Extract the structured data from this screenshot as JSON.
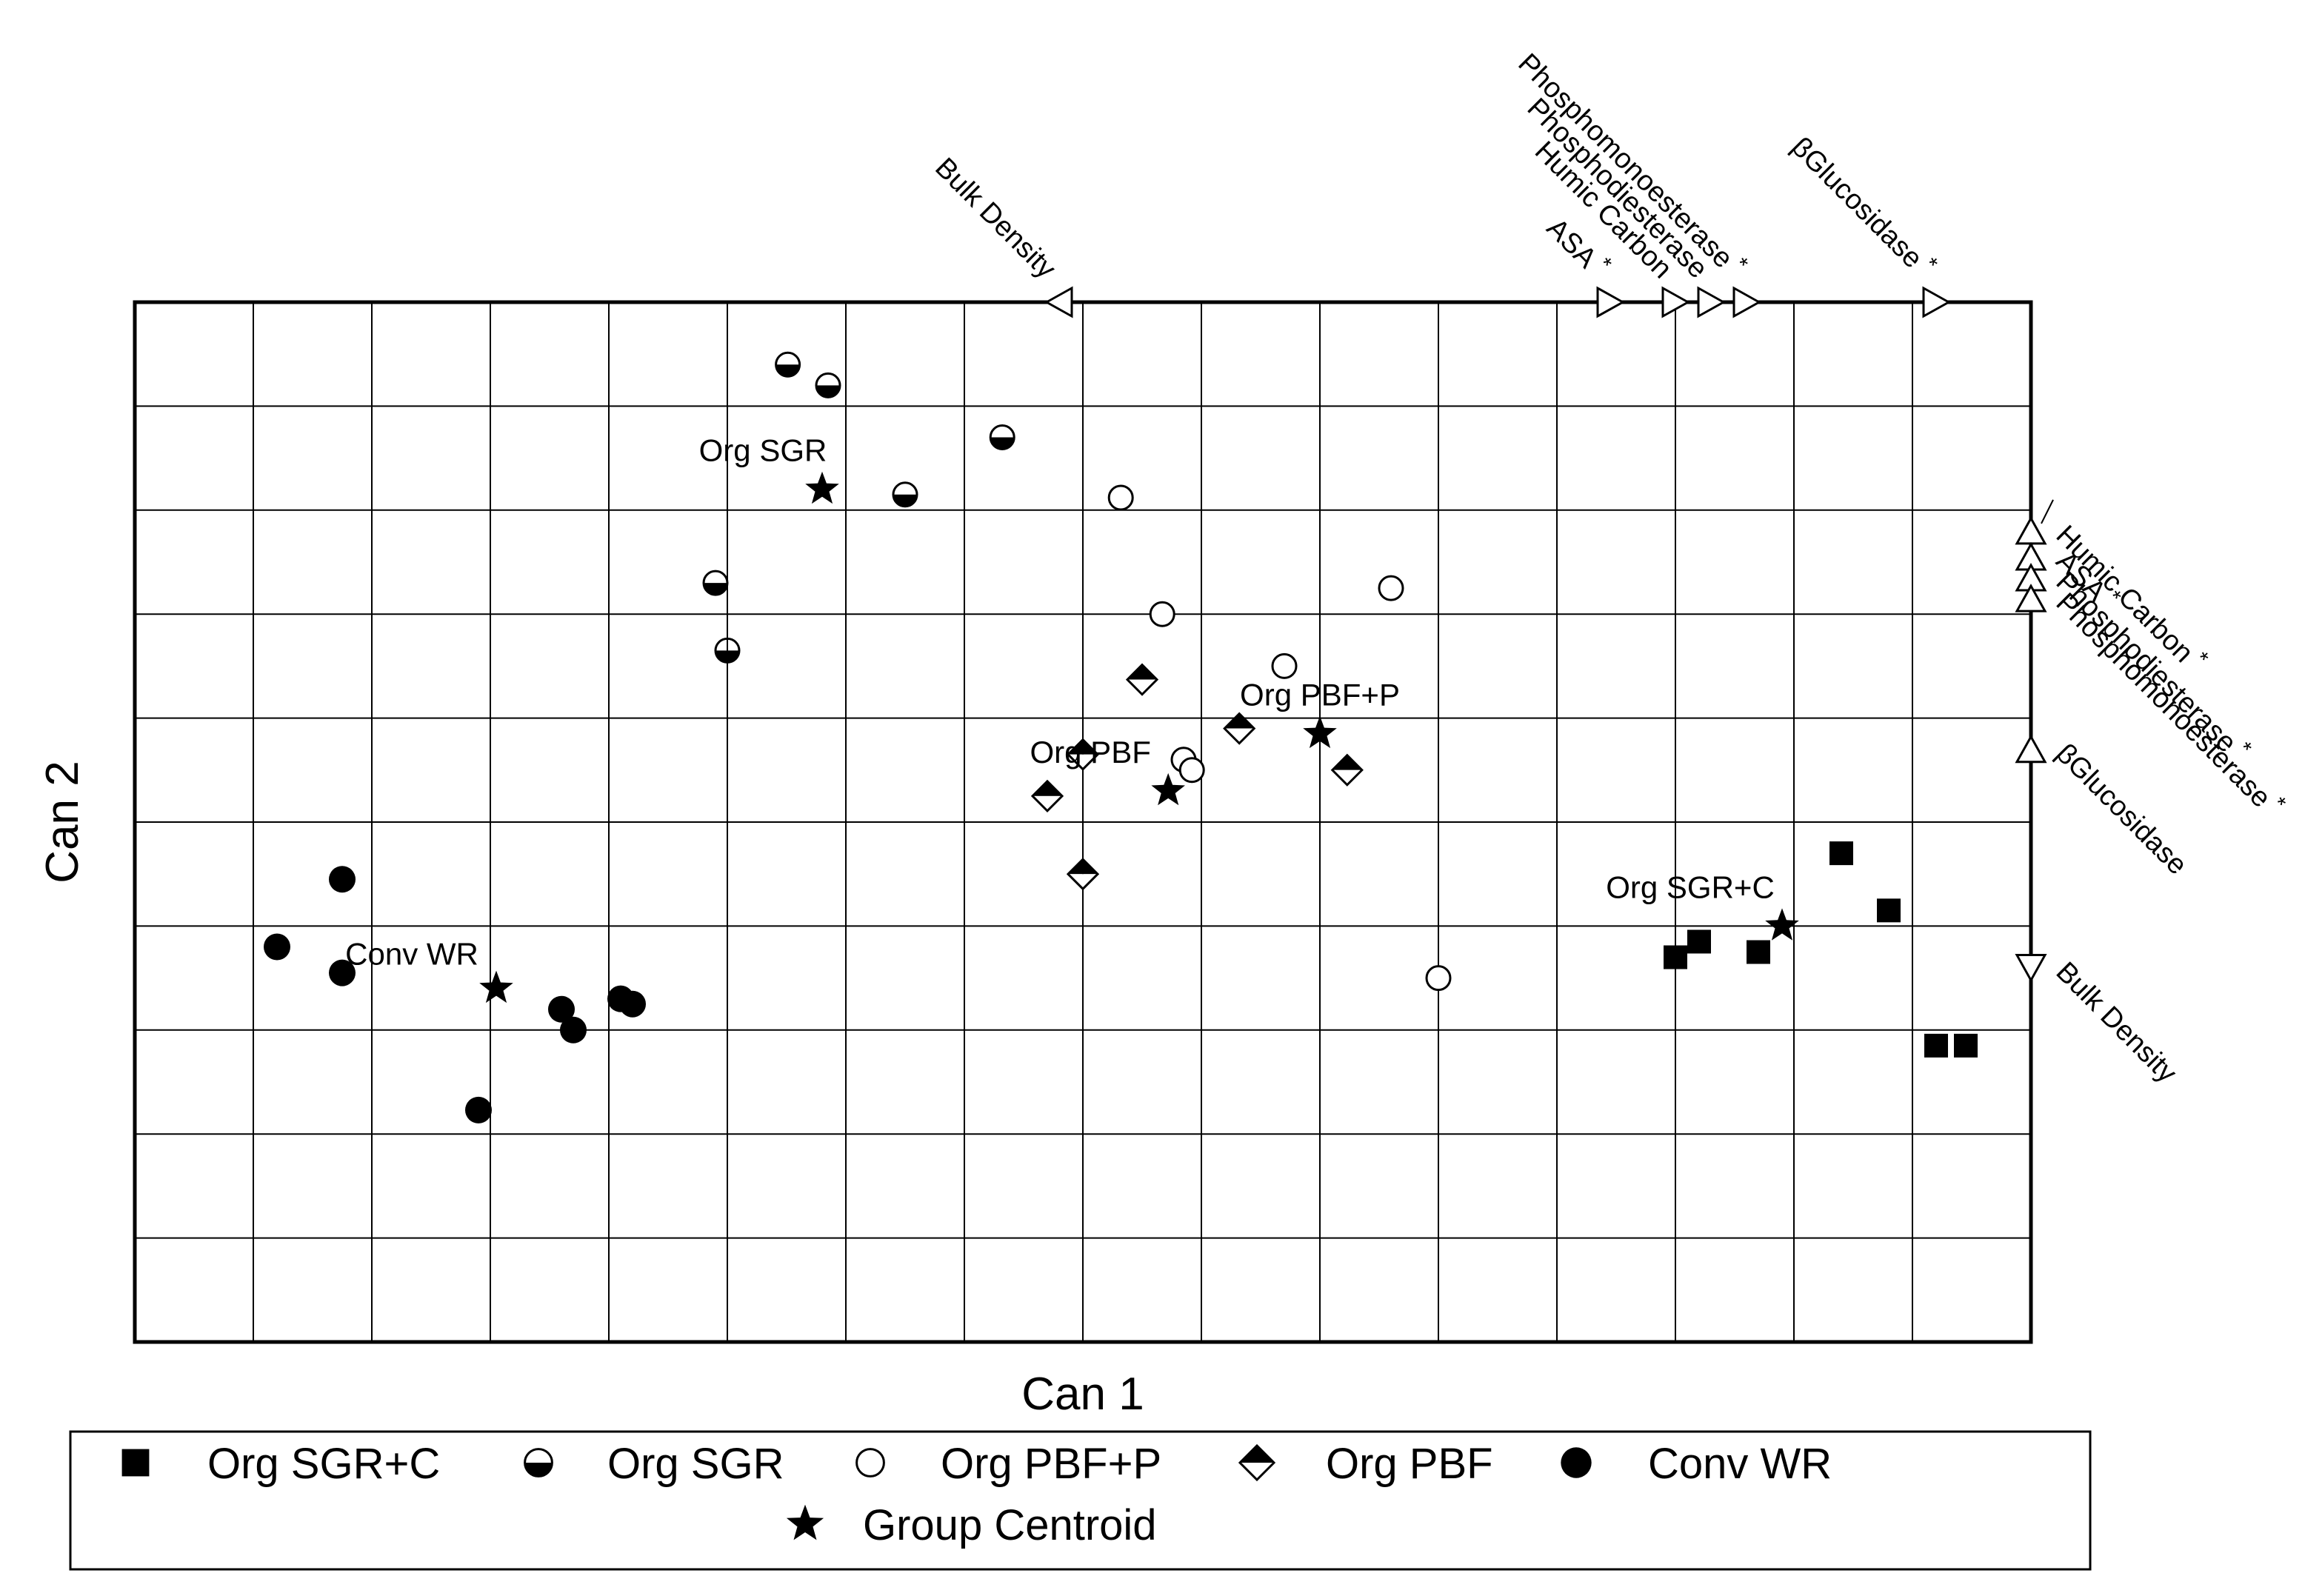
{
  "chart_data": {
    "type": "scatter",
    "title": "",
    "xlabel": "Can 1",
    "ylabel": "Can 2",
    "xlim": [
      -8,
      8
    ],
    "ylim": [
      -5,
      5
    ],
    "grid": true,
    "series": [
      {
        "name": "Org SGR+C",
        "marker": "square",
        "points": [
          [
            6.4,
            -0.3
          ],
          [
            6.8,
            -0.85
          ],
          [
            7.2,
            -2.15
          ],
          [
            5.7,
            -1.25
          ],
          [
            5.0,
            -1.3
          ],
          [
            5.2,
            -1.15
          ],
          [
            7.45,
            -2.15
          ]
        ]
      },
      {
        "name": "Org SGR",
        "marker": "half-filled-circle",
        "points": [
          [
            -2.49,
            4.4
          ],
          [
            -2.15,
            4.2
          ],
          [
            -0.68,
            3.7
          ],
          [
            -1.5,
            3.15
          ],
          [
            -3.0,
            1.65
          ],
          [
            -3.1,
            2.3
          ]
        ]
      },
      {
        "name": "Org PBF+P",
        "marker": "open-circle",
        "points": [
          [
            0.32,
            3.12
          ],
          [
            1.7,
            1.5
          ],
          [
            0.67,
            2.0
          ],
          [
            0.85,
            0.6
          ],
          [
            0.92,
            0.5
          ],
          [
            2.6,
            2.25
          ],
          [
            3.0,
            -1.5
          ]
        ]
      },
      {
        "name": "Org PBF",
        "marker": "half-filled-diamond",
        "points": [
          [
            0.5,
            1.37
          ],
          [
            1.32,
            0.9
          ],
          [
            0.0,
            0.65
          ],
          [
            -0.3,
            0.25
          ],
          [
            2.23,
            0.5
          ],
          [
            0.0,
            -0.5
          ]
        ]
      },
      {
        "name": "Conv WR",
        "marker": "filled-circle",
        "points": [
          [
            -6.8,
            -1.2
          ],
          [
            -6.25,
            -0.55
          ],
          [
            -6.25,
            -1.45
          ],
          [
            -5.1,
            -2.77
          ],
          [
            -4.4,
            -1.8
          ],
          [
            -4.3,
            -2.0
          ],
          [
            -3.9,
            -1.7
          ],
          [
            -3.8,
            -1.75
          ]
        ]
      }
    ],
    "centroids": {
      "name": "Group Centroid",
      "marker": "star",
      "points": [
        {
          "group": "Org SGR",
          "label": "Org SGR",
          "x": -2.2,
          "y": 3.2
        },
        {
          "group": "Org PBF+P",
          "label": "Org PBF+P",
          "x": 2.0,
          "y": 0.85
        },
        {
          "group": "Org PBF",
          "label": "Org PBF",
          "x": 0.72,
          "y": 0.3
        },
        {
          "group": "Org SGR+C",
          "label": "Org SGR+C",
          "x": 5.9,
          "y": -1.0
        },
        {
          "group": "Conv WR",
          "label": "Conv WR",
          "x": -4.95,
          "y": -1.6
        }
      ]
    },
    "vectors_top": [
      {
        "label": "Bulk Density",
        "x": -0.2,
        "direction": "left",
        "significant": false
      },
      {
        "label": "ASA",
        "x": 4.45,
        "direction": "right",
        "significant": true
      },
      {
        "label": "Humic Carbon",
        "x": 5.0,
        "direction": "right",
        "significant": false
      },
      {
        "label": "Phosphodiesterase",
        "x": 5.3,
        "direction": "right",
        "significant": false
      },
      {
        "label": "Phosphomonoesterase",
        "x": 5.6,
        "direction": "right",
        "significant": true
      },
      {
        "label": "βGlucosidase",
        "x": 7.2,
        "direction": "right",
        "significant": true
      }
    ],
    "vectors_right": [
      {
        "label": "Humic Carbon",
        "y": 2.8,
        "direction": "up",
        "significant": true
      },
      {
        "label": "ASA",
        "y": 2.55,
        "direction": "up",
        "significant": true
      },
      {
        "label": "Phosphodiesterase",
        "y": 2.35,
        "direction": "up",
        "significant": true
      },
      {
        "label": "Phosphomonoesterase",
        "y": 2.15,
        "direction": "up",
        "significant": true
      },
      {
        "label": "βGlucosidase",
        "y": 0.7,
        "direction": "up",
        "significant": false
      },
      {
        "label": "Bulk Density",
        "y": -1.4,
        "direction": "down",
        "significant": false
      }
    ],
    "asterisk": "*",
    "legend": {
      "placement": "bottom",
      "entries": [
        {
          "label": "Org SGR+C",
          "marker": "square"
        },
        {
          "label": "Org SGR",
          "marker": "half-filled-circle"
        },
        {
          "label": "Org PBF+P",
          "marker": "open-circle"
        },
        {
          "label": "Org PBF",
          "marker": "half-filled-diamond"
        },
        {
          "label": "Conv WR",
          "marker": "filled-circle"
        },
        {
          "label": "Group Centroid",
          "marker": "star"
        }
      ]
    }
  }
}
